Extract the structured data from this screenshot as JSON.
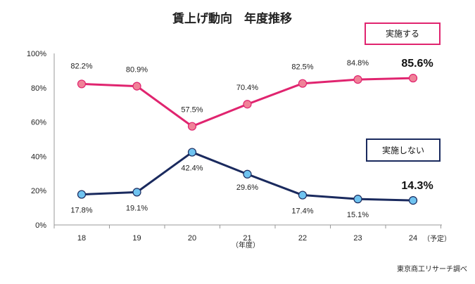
{
  "chart_data": {
    "type": "line",
    "title": "賃上げ動向　年度推移",
    "categories": [
      "18",
      "19",
      "20",
      "21",
      "22",
      "23",
      "24"
    ],
    "xlabel": "（年度）",
    "x_note": "（予定）",
    "ylabel": "",
    "ylim": [
      0,
      100
    ],
    "yticks": [
      "0%",
      "20%",
      "40%",
      "60%",
      "80%",
      "100%"
    ],
    "grid": false,
    "series": [
      {
        "name": "実施する",
        "values": [
          82.2,
          80.9,
          57.5,
          70.4,
          82.5,
          84.8,
          85.6
        ],
        "labels": [
          "82.2%",
          "80.9%",
          "57.5%",
          "70.4%",
          "82.5%",
          "84.8%",
          "85.6%"
        ],
        "line_color": "#e0246f",
        "marker_color": "#f08298"
      },
      {
        "name": "実施しない",
        "values": [
          17.8,
          19.1,
          42.4,
          29.6,
          17.4,
          15.1,
          14.3
        ],
        "labels": [
          "17.8%",
          "19.1%",
          "42.4%",
          "29.6%",
          "17.4%",
          "15.1%",
          "14.3%"
        ],
        "line_color": "#1a2a5e",
        "marker_color": "#6fc3f0"
      }
    ],
    "source": "東京商工リサーチ調べ"
  }
}
